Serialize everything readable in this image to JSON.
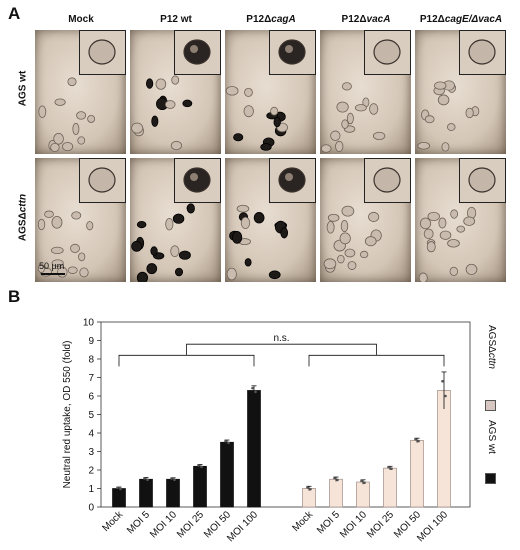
{
  "figure": {
    "panel_a_letter": "A",
    "panel_b_letter": "B",
    "columns": [
      {
        "prefix": "Mock",
        "italic": ""
      },
      {
        "prefix": "P12 wt",
        "italic": ""
      },
      {
        "prefix": "P12Δ",
        "italic": "cagA"
      },
      {
        "prefix": "P12Δ",
        "italic": "vacA"
      },
      {
        "prefix": "P12Δ",
        "italic": "cagE/ΔvacA"
      }
    ],
    "rows": [
      {
        "prefix": "AGS wt",
        "italic": ""
      },
      {
        "prefix": "AGSΔ",
        "italic": "cttn"
      }
    ],
    "scale_bar": "50 µm"
  },
  "chart_data": {
    "type": "bar",
    "ylabel": "Neutral red uptake, OD 550 (fold)",
    "ylim": [
      0,
      10
    ],
    "yticks": [
      0,
      1,
      2,
      3,
      4,
      5,
      6,
      7,
      8,
      9,
      10
    ],
    "significance": "n.s.",
    "series": [
      {
        "name": "AGS wt",
        "color": "#111111",
        "categories": [
          "Mock",
          "MOI 5",
          "MOI 10",
          "MOI 25",
          "MOI 50",
          "MOI 100"
        ],
        "values": [
          1.0,
          1.5,
          1.5,
          2.2,
          3.5,
          6.3
        ],
        "errors": [
          0.08,
          0.1,
          0.08,
          0.1,
          0.12,
          0.25
        ]
      },
      {
        "name": "AGSΔcttn",
        "legend_prefix": "AGSΔ",
        "legend_italic": "cttn",
        "color": "#f6e4d9",
        "categories": [
          "Mock",
          "MOI 5",
          "MOI 10",
          "MOI 25",
          "MOI 50",
          "MOI 100"
        ],
        "values": [
          1.0,
          1.5,
          1.35,
          2.1,
          3.6,
          6.3
        ],
        "errors": [
          0.12,
          0.12,
          0.12,
          0.1,
          0.12,
          1.0
        ]
      }
    ]
  }
}
